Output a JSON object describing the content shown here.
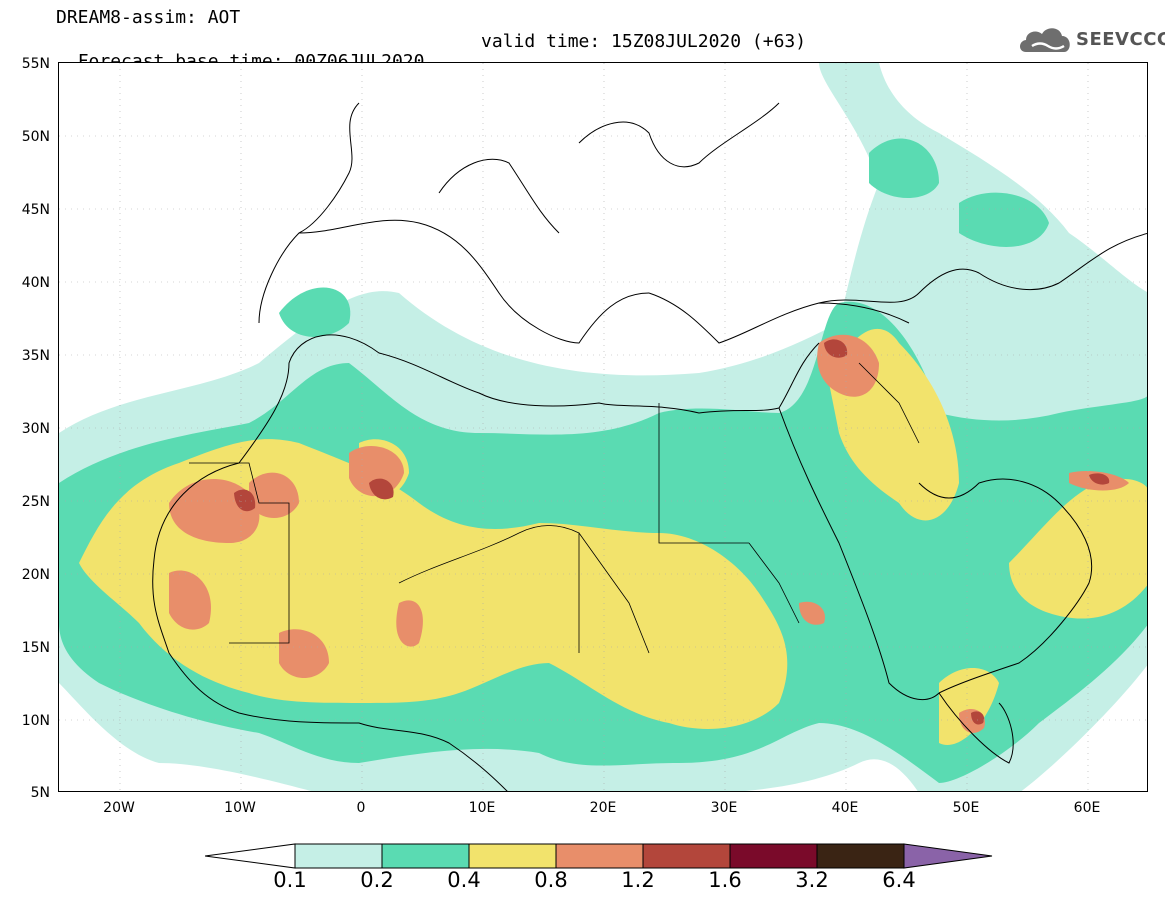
{
  "header": {
    "title": "DREAM8-assim: AOT",
    "base_time": "Forecast base time: 00Z06JUL2020",
    "valid_time": "valid time: 15Z08JUL2020 (+63)"
  },
  "logo": {
    "text": "SEEVCCC",
    "icon": "cloud-logo-icon"
  },
  "map": {
    "projection": "lat-lon",
    "lon_range": [
      -25,
      65
    ],
    "lat_range": [
      5,
      55
    ],
    "lat_labels": [
      "55N",
      "50N",
      "45N",
      "40N",
      "35N",
      "30N",
      "25N",
      "20N",
      "15N",
      "10N",
      "5N"
    ],
    "lon_labels": [
      "20W",
      "10W",
      "0",
      "10E",
      "20E",
      "30E",
      "40E",
      "50E",
      "60E"
    ]
  },
  "colorbar": {
    "labels": [
      "0.1",
      "0.2",
      "0.4",
      "0.8",
      "1.2",
      "1.6",
      "3.2",
      "6.4"
    ],
    "colors": [
      "#ffffff",
      "#c5efe6",
      "#5adbb2",
      "#f2e36c",
      "#e88e6a",
      "#b3463b",
      "#7a0a2a",
      "#3a2414",
      "#8a63a8"
    ]
  }
}
